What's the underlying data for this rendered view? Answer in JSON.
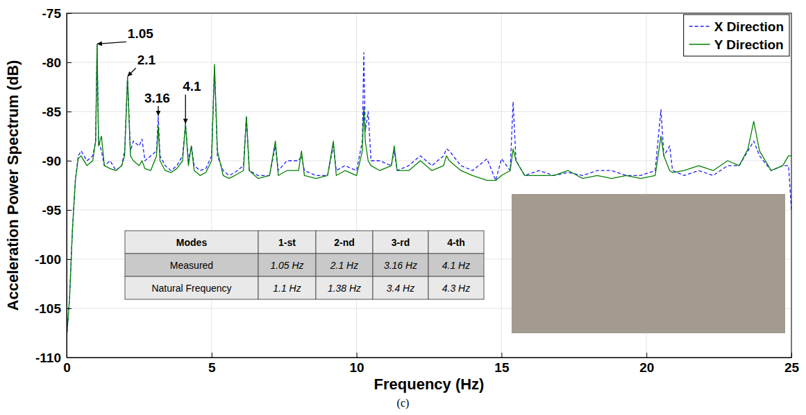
{
  "chart_data": {
    "type": "line",
    "x_label": "Frequency (Hz)",
    "y_label": "Acceleration Power Spectrum (dB)",
    "caption": "(c)",
    "x": [
      0,
      0.1,
      0.2,
      0.3,
      0.4,
      0.5,
      0.7,
      0.9,
      1.0,
      1.05,
      1.1,
      1.2,
      1.3,
      1.5,
      1.7,
      1.9,
      2.0,
      2.1,
      2.2,
      2.3,
      2.5,
      2.6,
      2.7,
      2.9,
      3.1,
      3.16,
      3.22,
      3.4,
      3.6,
      3.8,
      4.0,
      4.1,
      4.2,
      4.3,
      4.4,
      4.6,
      4.8,
      5.0,
      5.1,
      5.2,
      5.4,
      5.6,
      5.8,
      6.1,
      6.2,
      6.3,
      6.6,
      7.0,
      7.2,
      7.3,
      7.6,
      8.0,
      8.1,
      8.2,
      8.6,
      9.0,
      9.2,
      9.3,
      9.6,
      10.0,
      10.2,
      10.25,
      10.3,
      10.4,
      10.5,
      10.8,
      11.2,
      11.3,
      11.4,
      11.8,
      12.2,
      12.6,
      13.0,
      13.1,
      13.2,
      13.6,
      14.0,
      14.5,
      14.8,
      15.0,
      15.3,
      15.4,
      15.5,
      15.8,
      16.3,
      16.8,
      17.3,
      17.8,
      18.3,
      18.8,
      19.3,
      19.8,
      20.3,
      20.5,
      20.6,
      20.8,
      20.9,
      21.3,
      21.8,
      22.3,
      22.8,
      23.2,
      23.5,
      23.7,
      23.9,
      24.3,
      24.7,
      24.9,
      25
    ],
    "series": [
      {
        "name": "X Direction",
        "color": "#1f1fff",
        "line_style": "dashed",
        "values": [
          -108,
          -104,
          -97,
          -92,
          -89.5,
          -89,
          -90,
          -89.5,
          -88,
          -78.2,
          -88,
          -89,
          -90.5,
          -90,
          -91,
          -90.5,
          -89,
          -81.5,
          -89,
          -88,
          -88.5,
          -87.8,
          -90,
          -89.5,
          -89,
          -85.5,
          -89.5,
          -90.5,
          -91,
          -90.5,
          -89.5,
          -86.3,
          -90,
          -88.5,
          -90.5,
          -91,
          -90.8,
          -89.5,
          -80.5,
          -89.5,
          -91,
          -91.5,
          -91.2,
          -90.5,
          -85.5,
          -91,
          -91.5,
          -91.5,
          -88.5,
          -91,
          -90,
          -90,
          -89.5,
          -91,
          -91.5,
          -91.5,
          -88.5,
          -91,
          -90.5,
          -91,
          -88,
          -79,
          -87,
          -85,
          -90,
          -90,
          -90.5,
          -89,
          -91,
          -90.5,
          -89.5,
          -90.5,
          -89.5,
          -88.8,
          -89,
          -90.5,
          -91,
          -89.8,
          -92,
          -89.8,
          -91,
          -84,
          -90,
          -91.5,
          -91,
          -91.5,
          -91.2,
          -91.5,
          -91,
          -91,
          -91.5,
          -91.5,
          -91,
          -84.8,
          -89.5,
          -88.5,
          -91,
          -91.5,
          -91,
          -91.5,
          -90.5,
          -90.5,
          -89,
          -88,
          -89.5,
          -91,
          -90.5,
          -90.5,
          -95
        ]
      },
      {
        "name": "Y Direction",
        "color": "#008000",
        "line_style": "solid",
        "values": [
          -108,
          -104,
          -97,
          -92,
          -89.8,
          -89.5,
          -90.5,
          -90,
          -88,
          -78.2,
          -88.5,
          -87.5,
          -90.5,
          -90.8,
          -91,
          -90.5,
          -89.5,
          -81.5,
          -89.5,
          -90,
          -90.5,
          -90,
          -90.8,
          -91,
          -89.5,
          -86.5,
          -90,
          -91,
          -91.2,
          -90.8,
          -90,
          -86.2,
          -90.5,
          -88.5,
          -91,
          -91.5,
          -91.2,
          -90,
          -80.2,
          -89,
          -91.5,
          -91.8,
          -91.5,
          -91,
          -85.5,
          -91,
          -91.8,
          -91.5,
          -88,
          -91.5,
          -91,
          -91,
          -89,
          -91.5,
          -91.8,
          -91.5,
          -88,
          -91.5,
          -91,
          -91.5,
          -89,
          -84.5,
          -88,
          -90,
          -90.5,
          -91,
          -90.5,
          -88.5,
          -91,
          -91,
          -90,
          -91,
          -90.5,
          -89.5,
          -90,
          -91,
          -91.5,
          -92,
          -92,
          -91.5,
          -91,
          -88.8,
          -90,
          -91.5,
          -91.5,
          -91.5,
          -91,
          -91.8,
          -91.5,
          -91.8,
          -91.5,
          -91.8,
          -91.5,
          -87.5,
          -89.5,
          -91,
          -91.2,
          -91,
          -90.5,
          -91,
          -90,
          -90.5,
          -88.8,
          -86,
          -89,
          -91,
          -90.5,
          -89.5,
          -89.5
        ]
      }
    ],
    "xlim": [
      0,
      25
    ],
    "xticks": [
      0,
      5,
      10,
      15,
      20,
      25
    ],
    "ylim": [
      -110,
      -75
    ],
    "yticks": [
      -110,
      -105,
      -100,
      -95,
      -90,
      -85,
      -80,
      -75
    ],
    "grid": true,
    "legend": "top-right",
    "annotations": [
      {
        "text": "1.05",
        "x": 1.05,
        "y": -78.2
      },
      {
        "text": "2.1",
        "x": 2.1,
        "y": -81.5
      },
      {
        "text": "3.16",
        "x": 3.16,
        "y": -85.5
      },
      {
        "text": "4.1",
        "x": 4.1,
        "y": -86.3
      }
    ],
    "table": {
      "header": [
        "Modes",
        "1-st",
        "2-nd",
        "3-rd",
        "4-th"
      ],
      "rows": [
        [
          "Measured",
          "1.05 Hz",
          "2.1 Hz",
          "3.16 Hz",
          "4.1 Hz"
        ],
        [
          "Natural Frequency",
          "1.1 Hz",
          "1.38 Hz",
          "3.4 Hz",
          "4.3 Hz"
        ]
      ]
    }
  }
}
